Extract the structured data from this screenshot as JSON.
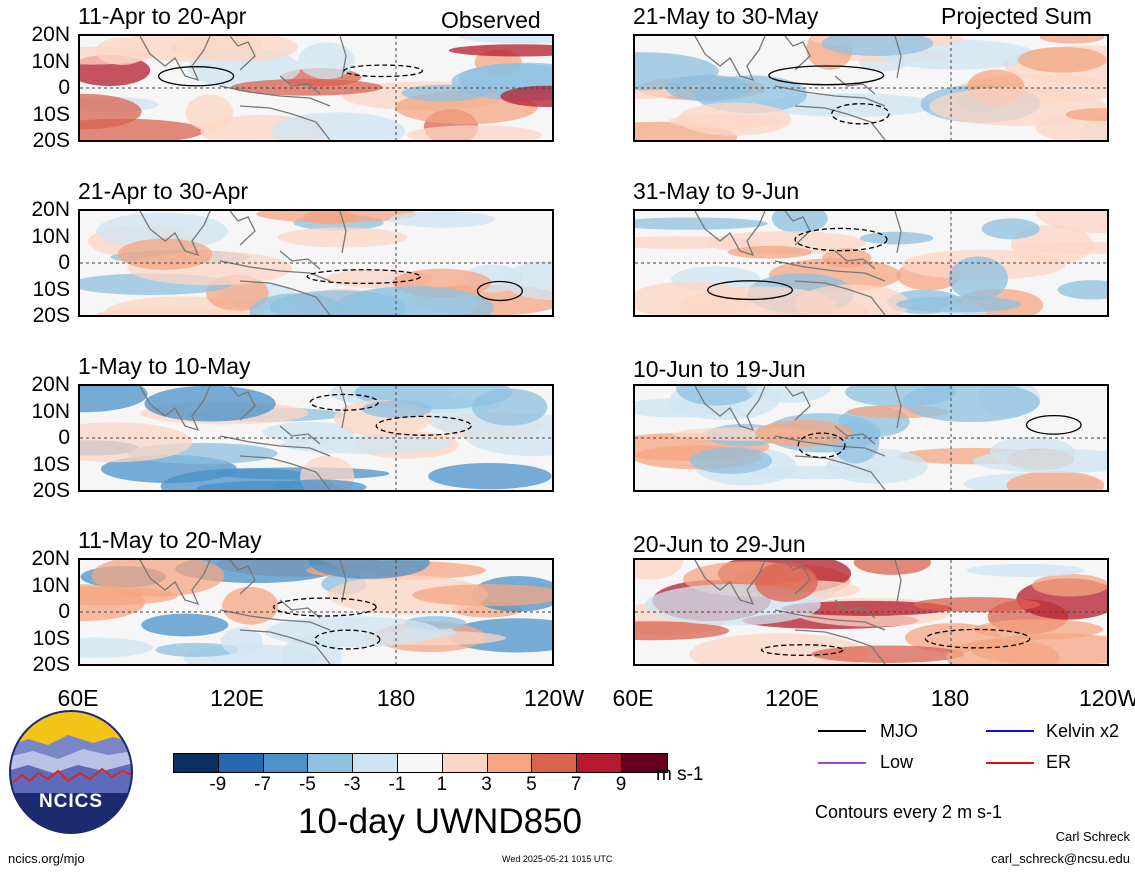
{
  "header": {
    "left_label": "Observed",
    "right_label": "Projected Sum"
  },
  "panels_left": [
    {
      "title": "11-Apr to 20-Apr"
    },
    {
      "title": "21-Apr to 30-Apr"
    },
    {
      "title": "1-May to 10-May"
    },
    {
      "title": "11-May to 20-May"
    }
  ],
  "panels_right": [
    {
      "title": "21-May to 30-May"
    },
    {
      "title": "31-May to 9-Jun"
    },
    {
      "title": "10-Jun to 19-Jun"
    },
    {
      "title": "20-Jun to 29-Jun"
    }
  ],
  "lat_labels": [
    "20N",
    "10N",
    "0",
    "10S",
    "20S"
  ],
  "lon_labels": [
    "60E",
    "120E",
    "180",
    "120W"
  ],
  "colorbar": {
    "ticks": [
      "-9",
      "-7",
      "-5",
      "-3",
      "-1",
      "1",
      "3",
      "5",
      "7",
      "9"
    ],
    "colors": [
      "#0b2f5e",
      "#2468b0",
      "#4a92c8",
      "#8ec0e0",
      "#cfe4f1",
      "#f7f7f7",
      "#fcd6c4",
      "#f4a582",
      "#d96350",
      "#b41c2c",
      "#67001f"
    ],
    "units": "m s-1"
  },
  "main_title": "10-day UWND850",
  "legend": {
    "items": [
      {
        "label": "MJO",
        "color": "#000000"
      },
      {
        "label": "Kelvin x2",
        "color": "#1010e0"
      },
      {
        "label": "Low",
        "color": "#a040e0"
      },
      {
        "label": "ER",
        "color": "#e01010"
      }
    ],
    "contour_note": "Contours every 2 m s-1"
  },
  "logo": {
    "text": "NCICS"
  },
  "footer": {
    "left": "ncics.org/mjo",
    "center": "Wed 2025-05-21 1015 UTC",
    "right_name": "Carl Schreck",
    "right_email": "carl_schreck@ncsu.edu"
  }
}
